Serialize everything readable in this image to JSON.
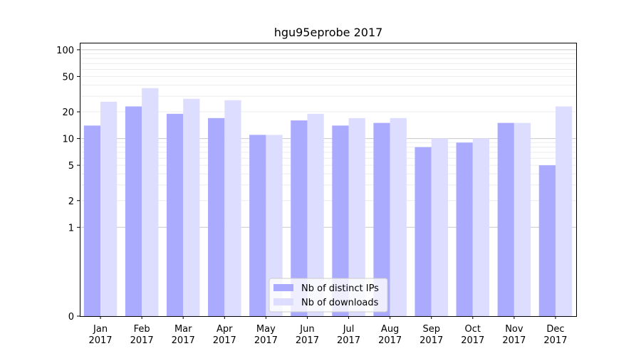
{
  "chart_data": {
    "type": "bar",
    "title": "hgu95eprobe 2017",
    "xlabel": "",
    "ylabel": "",
    "yscale": "symlog",
    "ylim": [
      0,
      120
    ],
    "yticks": [
      "0",
      "1",
      "2",
      "5",
      "10",
      "20",
      "50",
      "100"
    ],
    "grid": true,
    "legend": "lower center",
    "categories": [
      [
        "Jan",
        "2017"
      ],
      [
        "Feb",
        "2017"
      ],
      [
        "Mar",
        "2017"
      ],
      [
        "Apr",
        "2017"
      ],
      [
        "May",
        "2017"
      ],
      [
        "Jun",
        "2017"
      ],
      [
        "Jul",
        "2017"
      ],
      [
        "Aug",
        "2017"
      ],
      [
        "Sep",
        "2017"
      ],
      [
        "Oct",
        "2017"
      ],
      [
        "Nov",
        "2017"
      ],
      [
        "Dec",
        "2017"
      ]
    ],
    "series": [
      {
        "name": "Nb of distinct IPs",
        "color": "#aaaaff",
        "values": [
          14,
          23,
          19,
          17,
          11,
          16,
          14,
          15,
          8,
          9,
          15,
          5
        ]
      },
      {
        "name": "Nb of downloads",
        "color": "#ddddff",
        "values": [
          26,
          37,
          28,
          27,
          11,
          19,
          17,
          17,
          10,
          10,
          15,
          23
        ]
      }
    ]
  }
}
